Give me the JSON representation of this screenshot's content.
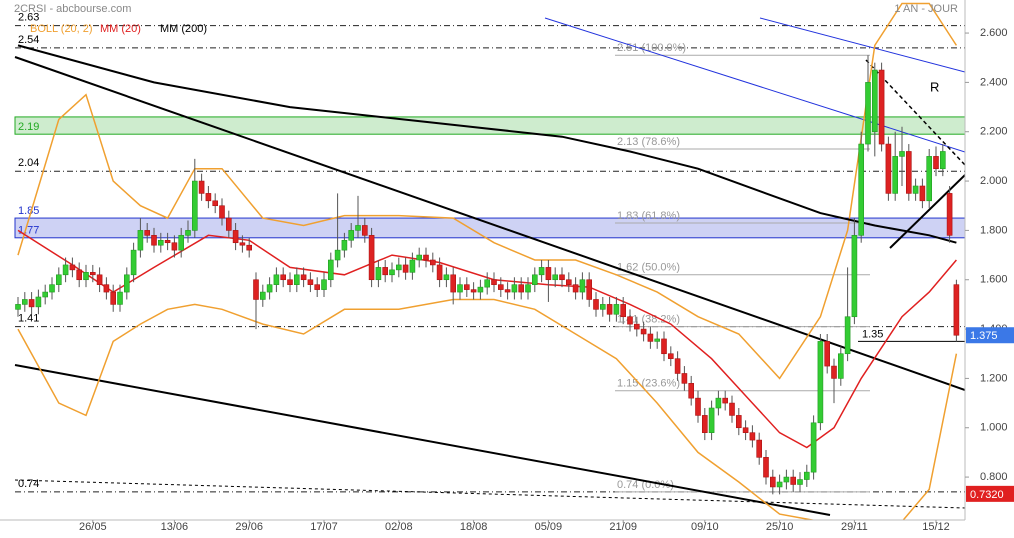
{
  "chart_data": {
    "type": "candlestick",
    "title": "2CRSI - abcbourse.com",
    "period": "1 AN - JOUR",
    "annotation": "R",
    "ylim": [
      0.626,
      2.734
    ],
    "yticks": [
      {
        "value": 0.8,
        "label": "0.800"
      },
      {
        "value": 1.0,
        "label": "1.000"
      },
      {
        "value": 1.2,
        "label": "1.200"
      },
      {
        "value": 1.4,
        "label": "1.400"
      },
      {
        "value": 1.6,
        "label": "1.600"
      },
      {
        "value": 1.8,
        "label": "1.800"
      },
      {
        "value": 2.0,
        "label": "2.000"
      },
      {
        "value": 2.2,
        "label": "2.200"
      },
      {
        "value": 2.4,
        "label": "2.400"
      },
      {
        "value": 2.6,
        "label": "2.600"
      }
    ],
    "up_color": "#33cc33",
    "down_color": "#dd2222",
    "categories": [
      null,
      null,
      null,
      null,
      null,
      null,
      null,
      null,
      null,
      null,
      null,
      "26/05",
      null,
      null,
      null,
      null,
      null,
      null,
      null,
      null,
      null,
      null,
      null,
      "13/06",
      null,
      null,
      null,
      null,
      null,
      null,
      null,
      null,
      null,
      null,
      "29/06",
      null,
      null,
      null,
      null,
      null,
      null,
      null,
      null,
      null,
      null,
      "17/07",
      null,
      null,
      null,
      null,
      null,
      null,
      null,
      null,
      null,
      null,
      "02/08",
      null,
      null,
      null,
      null,
      null,
      null,
      null,
      null,
      null,
      null,
      "18/08",
      null,
      null,
      null,
      null,
      null,
      null,
      null,
      null,
      null,
      null,
      "05/09",
      null,
      null,
      null,
      null,
      null,
      null,
      null,
      null,
      null,
      null,
      "21/09",
      null,
      null,
      null,
      null,
      null,
      null,
      null,
      null,
      null,
      null,
      null,
      "09/10",
      null,
      null,
      null,
      null,
      null,
      null,
      null,
      null,
      null,
      null,
      "25/10",
      null,
      null,
      null,
      null,
      null,
      null,
      null,
      null,
      null,
      null,
      "29/11",
      null,
      null,
      null,
      null,
      null,
      null,
      null,
      null,
      null,
      null,
      null,
      "15/12",
      null,
      null,
      null
    ],
    "ohlc": [
      [
        1.48,
        1.53,
        1.45,
        1.5
      ],
      [
        1.5,
        1.55,
        1.47,
        1.52
      ],
      [
        1.52,
        1.55,
        1.46,
        1.49
      ],
      [
        1.49,
        1.56,
        1.46,
        1.53
      ],
      [
        1.53,
        1.58,
        1.5,
        1.55
      ],
      [
        1.55,
        1.61,
        1.52,
        1.58
      ],
      [
        1.58,
        1.65,
        1.55,
        1.62
      ],
      [
        1.62,
        1.69,
        1.59,
        1.66
      ],
      [
        1.66,
        1.69,
        1.61,
        1.64
      ],
      [
        1.64,
        1.67,
        1.57,
        1.6
      ],
      [
        1.6,
        1.66,
        1.57,
        1.63
      ],
      [
        1.63,
        1.66,
        1.59,
        1.62
      ],
      [
        1.62,
        1.65,
        1.55,
        1.58
      ],
      [
        1.58,
        1.61,
        1.52,
        1.55
      ],
      [
        1.55,
        1.58,
        1.47,
        1.5
      ],
      [
        1.5,
        1.58,
        1.47,
        1.55
      ],
      [
        1.55,
        1.65,
        1.52,
        1.62
      ],
      [
        1.62,
        1.75,
        1.59,
        1.72
      ],
      [
        1.72,
        1.85,
        1.69,
        1.8
      ],
      [
        1.8,
        1.83,
        1.75,
        1.78
      ],
      [
        1.78,
        1.81,
        1.71,
        1.74
      ],
      [
        1.74,
        1.79,
        1.71,
        1.76
      ],
      [
        1.76,
        1.79,
        1.72,
        1.75
      ],
      [
        1.75,
        1.78,
        1.69,
        1.72
      ],
      [
        1.72,
        1.81,
        1.69,
        1.78
      ],
      [
        1.78,
        1.84,
        1.75,
        1.8
      ],
      [
        1.8,
        2.09,
        1.77,
        2.0
      ],
      [
        2.0,
        2.03,
        1.92,
        1.95
      ],
      [
        1.95,
        1.98,
        1.89,
        1.92
      ],
      [
        1.92,
        1.95,
        1.87,
        1.9
      ],
      [
        1.9,
        1.93,
        1.82,
        1.85
      ],
      [
        1.85,
        1.88,
        1.77,
        1.8
      ],
      [
        1.8,
        1.83,
        1.72,
        1.75
      ],
      [
        1.75,
        1.78,
        1.71,
        1.74
      ],
      [
        1.74,
        1.77,
        1.69,
        1.72
      ],
      [
        1.6,
        1.63,
        1.4,
        1.52
      ],
      [
        1.52,
        1.58,
        1.49,
        1.55
      ],
      [
        1.55,
        1.61,
        1.52,
        1.58
      ],
      [
        1.58,
        1.65,
        1.55,
        1.62
      ],
      [
        1.62,
        1.65,
        1.57,
        1.6
      ],
      [
        1.6,
        1.63,
        1.55,
        1.58
      ],
      [
        1.58,
        1.65,
        1.55,
        1.62
      ],
      [
        1.62,
        1.65,
        1.57,
        1.6
      ],
      [
        1.6,
        1.63,
        1.55,
        1.58
      ],
      [
        1.58,
        1.61,
        1.53,
        1.56
      ],
      [
        1.56,
        1.63,
        1.53,
        1.6
      ],
      [
        1.6,
        1.71,
        1.57,
        1.68
      ],
      [
        1.68,
        1.95,
        1.65,
        1.72
      ],
      [
        1.72,
        1.79,
        1.69,
        1.76
      ],
      [
        1.76,
        1.83,
        1.73,
        1.8
      ],
      [
        1.8,
        1.94,
        1.77,
        1.82
      ],
      [
        1.82,
        1.85,
        1.75,
        1.78
      ],
      [
        1.78,
        1.81,
        1.57,
        1.6
      ],
      [
        1.6,
        1.68,
        1.57,
        1.65
      ],
      [
        1.65,
        1.68,
        1.59,
        1.62
      ],
      [
        1.62,
        1.67,
        1.59,
        1.64
      ],
      [
        1.64,
        1.69,
        1.61,
        1.66
      ],
      [
        1.66,
        1.69,
        1.6,
        1.63
      ],
      [
        1.63,
        1.71,
        1.6,
        1.68
      ],
      [
        1.68,
        1.73,
        1.65,
        1.7
      ],
      [
        1.7,
        1.73,
        1.65,
        1.68
      ],
      [
        1.68,
        1.71,
        1.63,
        1.66
      ],
      [
        1.66,
        1.69,
        1.57,
        1.6
      ],
      [
        1.6,
        1.65,
        1.57,
        1.62
      ],
      [
        1.62,
        1.65,
        1.5,
        1.55
      ],
      [
        1.55,
        1.61,
        1.52,
        1.58
      ],
      [
        1.58,
        1.61,
        1.53,
        1.56
      ],
      [
        1.56,
        1.59,
        1.52,
        1.55
      ],
      [
        1.55,
        1.6,
        1.52,
        1.57
      ],
      [
        1.57,
        1.63,
        1.54,
        1.6
      ],
      [
        1.6,
        1.63,
        1.55,
        1.58
      ],
      [
        1.58,
        1.61,
        1.53,
        1.56
      ],
      [
        1.56,
        1.59,
        1.52,
        1.55
      ],
      [
        1.55,
        1.61,
        1.52,
        1.58
      ],
      [
        1.58,
        1.61,
        1.52,
        1.55
      ],
      [
        1.55,
        1.61,
        1.52,
        1.58
      ],
      [
        1.58,
        1.65,
        1.55,
        1.62
      ],
      [
        1.62,
        1.68,
        1.59,
        1.65
      ],
      [
        1.65,
        1.68,
        1.51,
        1.6
      ],
      [
        1.6,
        1.65,
        1.57,
        1.62
      ],
      [
        1.62,
        1.65,
        1.57,
        1.6
      ],
      [
        1.6,
        1.63,
        1.55,
        1.58
      ],
      [
        1.58,
        1.61,
        1.52,
        1.55
      ],
      [
        1.55,
        1.63,
        1.52,
        1.6
      ],
      [
        1.6,
        1.63,
        1.49,
        1.52
      ],
      [
        1.52,
        1.55,
        1.45,
        1.48
      ],
      [
        1.48,
        1.53,
        1.45,
        1.5
      ],
      [
        1.5,
        1.53,
        1.43,
        1.46
      ],
      [
        1.46,
        1.53,
        1.43,
        1.5
      ],
      [
        1.5,
        1.53,
        1.42,
        1.45
      ],
      [
        1.45,
        1.48,
        1.39,
        1.42
      ],
      [
        1.42,
        1.45,
        1.37,
        1.4
      ],
      [
        1.4,
        1.43,
        1.35,
        1.38
      ],
      [
        1.38,
        1.41,
        1.32,
        1.35
      ],
      [
        1.35,
        1.39,
        1.32,
        1.36
      ],
      [
        1.36,
        1.39,
        1.27,
        1.3
      ],
      [
        1.3,
        1.33,
        1.25,
        1.28
      ],
      [
        1.28,
        1.31,
        1.19,
        1.22
      ],
      [
        1.22,
        1.25,
        1.15,
        1.18
      ],
      [
        1.18,
        1.21,
        1.09,
        1.12
      ],
      [
        1.12,
        1.15,
        1.02,
        1.05
      ],
      [
        1.05,
        1.08,
        0.95,
        0.98
      ],
      [
        0.98,
        1.11,
        0.95,
        1.08
      ],
      [
        1.08,
        1.15,
        1.05,
        1.12
      ],
      [
        1.12,
        1.15,
        1.07,
        1.1
      ],
      [
        1.1,
        1.13,
        1.02,
        1.05
      ],
      [
        1.05,
        1.08,
        0.97,
        1.0
      ],
      [
        1.0,
        1.03,
        0.95,
        0.98
      ],
      [
        0.98,
        1.01,
        0.92,
        0.95
      ],
      [
        0.95,
        0.98,
        0.85,
        0.88
      ],
      [
        0.88,
        0.91,
        0.77,
        0.8
      ],
      [
        0.8,
        0.83,
        0.73,
        0.76
      ],
      [
        0.76,
        0.81,
        0.73,
        0.78
      ],
      [
        0.78,
        0.83,
        0.75,
        0.8
      ],
      [
        0.8,
        0.83,
        0.74,
        0.77
      ],
      [
        0.77,
        0.82,
        0.74,
        0.79
      ],
      [
        0.79,
        0.85,
        0.76,
        0.82
      ],
      [
        0.82,
        1.05,
        0.79,
        1.02
      ],
      [
        1.02,
        1.38,
        0.99,
        1.35
      ],
      [
        1.35,
        1.38,
        1.22,
        1.25
      ],
      [
        1.25,
        1.28,
        1.1,
        1.2
      ],
      [
        1.2,
        1.33,
        1.17,
        1.3
      ],
      [
        1.3,
        1.65,
        1.27,
        1.45
      ],
      [
        1.45,
        1.85,
        1.42,
        1.78
      ],
      [
        1.78,
        2.2,
        1.75,
        2.15
      ],
      [
        2.15,
        2.51,
        2.12,
        2.4
      ],
      [
        2.2,
        2.48,
        2.1,
        2.45
      ],
      [
        2.45,
        2.48,
        2.12,
        2.15
      ],
      [
        2.15,
        2.18,
        1.92,
        1.95
      ],
      [
        1.95,
        2.2,
        1.92,
        2.1
      ],
      [
        2.1,
        2.22,
        1.98,
        2.12
      ],
      [
        2.12,
        2.15,
        1.92,
        1.95
      ],
      [
        1.95,
        2.01,
        1.92,
        1.98
      ],
      [
        1.98,
        2.01,
        1.89,
        1.92
      ],
      [
        1.92,
        2.13,
        1.89,
        2.1
      ],
      [
        2.1,
        2.14,
        2.02,
        2.05
      ],
      [
        2.05,
        2.15,
        2.02,
        2.12
      ],
      [
        1.95,
        1.98,
        1.75,
        1.78
      ],
      [
        1.58,
        1.6,
        1.35,
        1.375
      ]
    ],
    "series": [
      {
        "name": "BOLL (20, 2)",
        "color": "#f0a030",
        "x": [
          0,
          6,
          10,
          14,
          18,
          22,
          26,
          30,
          36,
          42,
          48,
          56,
          64,
          70,
          76,
          82,
          88,
          94,
          100,
          106,
          112,
          118,
          122,
          126,
          130,
          134,
          138
        ],
        "upper": [
          1.7,
          2.25,
          2.35,
          2.0,
          1.9,
          1.85,
          2.05,
          2.05,
          1.85,
          1.82,
          1.86,
          1.86,
          1.85,
          1.75,
          1.68,
          1.68,
          1.62,
          1.55,
          1.45,
          1.38,
          1.2,
          1.45,
          1.8,
          2.55,
          2.72,
          2.72,
          2.55
        ],
        "lower": [
          1.4,
          1.1,
          1.05,
          1.35,
          1.42,
          1.48,
          1.5,
          1.48,
          1.42,
          1.38,
          1.48,
          1.48,
          1.52,
          1.52,
          1.48,
          1.38,
          1.28,
          1.1,
          0.9,
          0.78,
          0.65,
          0.62,
          0.62,
          0.62,
          0.62,
          0.75,
          1.3
        ]
      },
      {
        "name": "MM (20)",
        "color": "#e02020",
        "x": [
          0,
          8,
          14,
          20,
          28,
          34,
          40,
          48,
          55,
          62,
          70,
          78,
          84,
          90,
          96,
          102,
          108,
          112,
          116,
          120,
          124,
          130,
          134,
          138
        ],
        "values": [
          1.8,
          1.66,
          1.55,
          1.65,
          1.78,
          1.76,
          1.65,
          1.62,
          1.7,
          1.67,
          1.6,
          1.58,
          1.57,
          1.5,
          1.42,
          1.28,
          1.1,
          0.98,
          0.92,
          1.0,
          1.2,
          1.45,
          1.55,
          1.68
        ]
      },
      {
        "name": "MM (200)",
        "color": "#000000",
        "x": [
          0,
          20,
          40,
          60,
          80,
          90,
          100,
          110,
          118,
          126,
          134,
          138
        ],
        "values": [
          2.55,
          2.4,
          2.3,
          2.24,
          2.18,
          2.12,
          2.05,
          1.95,
          1.87,
          1.82,
          1.78,
          1.75
        ]
      }
    ],
    "levels": [
      2.63,
      2.54,
      2.04,
      1.41,
      0.74
    ],
    "zones": [
      {
        "from": 2.19,
        "to": 2.26,
        "color": "#22aa22",
        "label": 2.19
      },
      {
        "from": 1.77,
        "to": 1.85,
        "color": "#2233cc",
        "label": 1.77,
        "label_top": 1.85
      }
    ],
    "fibonacci": [
      {
        "value": 2.51,
        "label": "2.51 (100.0%)"
      },
      {
        "value": 2.13,
        "label": "2.13 (78.6%)"
      },
      {
        "value": 1.83,
        "label": "1.83 (61.8%)"
      },
      {
        "value": 1.62,
        "label": "1.62 (50.0%)"
      },
      {
        "value": 1.41,
        "label": "1.41 (38.2%)"
      },
      {
        "value": 1.15,
        "label": "1.15 (23.6%)"
      },
      {
        "value": 0.74,
        "label": "0.74 (0.0%)"
      }
    ],
    "support": 1.35,
    "price_markers": [
      {
        "value": 1.375,
        "color": "#3b78e7"
      },
      {
        "value": 0.732,
        "label": "0.7320",
        "color": "#e02020"
      }
    ]
  }
}
